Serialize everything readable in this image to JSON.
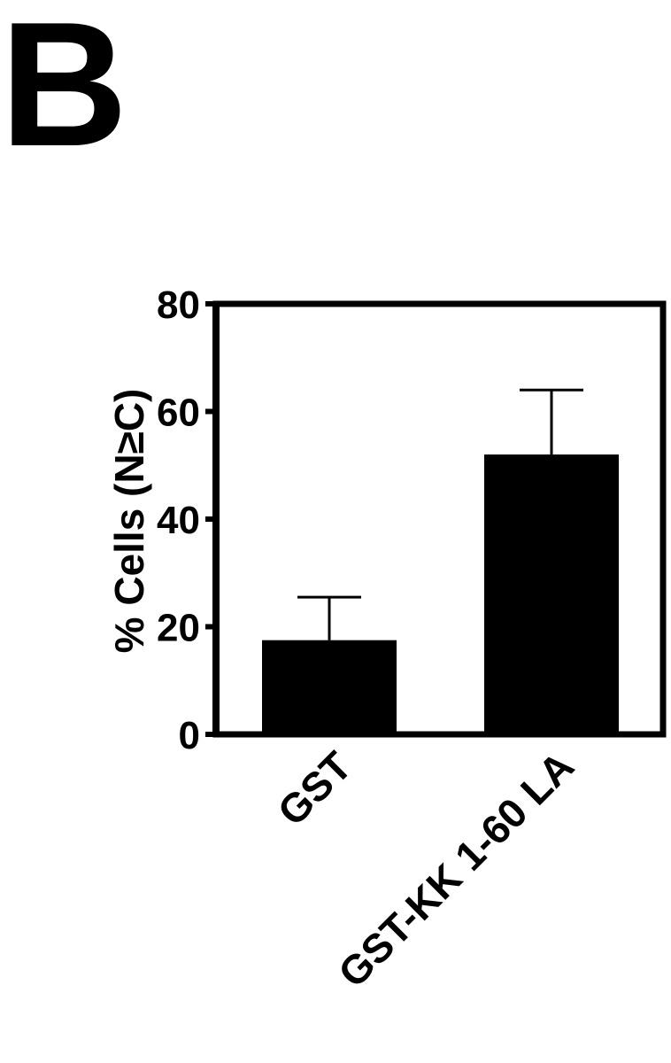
{
  "panel_label": "B",
  "chart_data": {
    "type": "bar",
    "categories": [
      "GST",
      "GST-KK 1-60 LA"
    ],
    "values": [
      17.5,
      52
    ],
    "errors": [
      8,
      12
    ],
    "ylabel": "% Cells (N≥C)",
    "xlabel": "",
    "ylim": [
      0,
      80
    ],
    "yticks": [
      0,
      20,
      40,
      60,
      80
    ],
    "grid": false,
    "bar_color": "#000000",
    "error_bars": "upper"
  }
}
